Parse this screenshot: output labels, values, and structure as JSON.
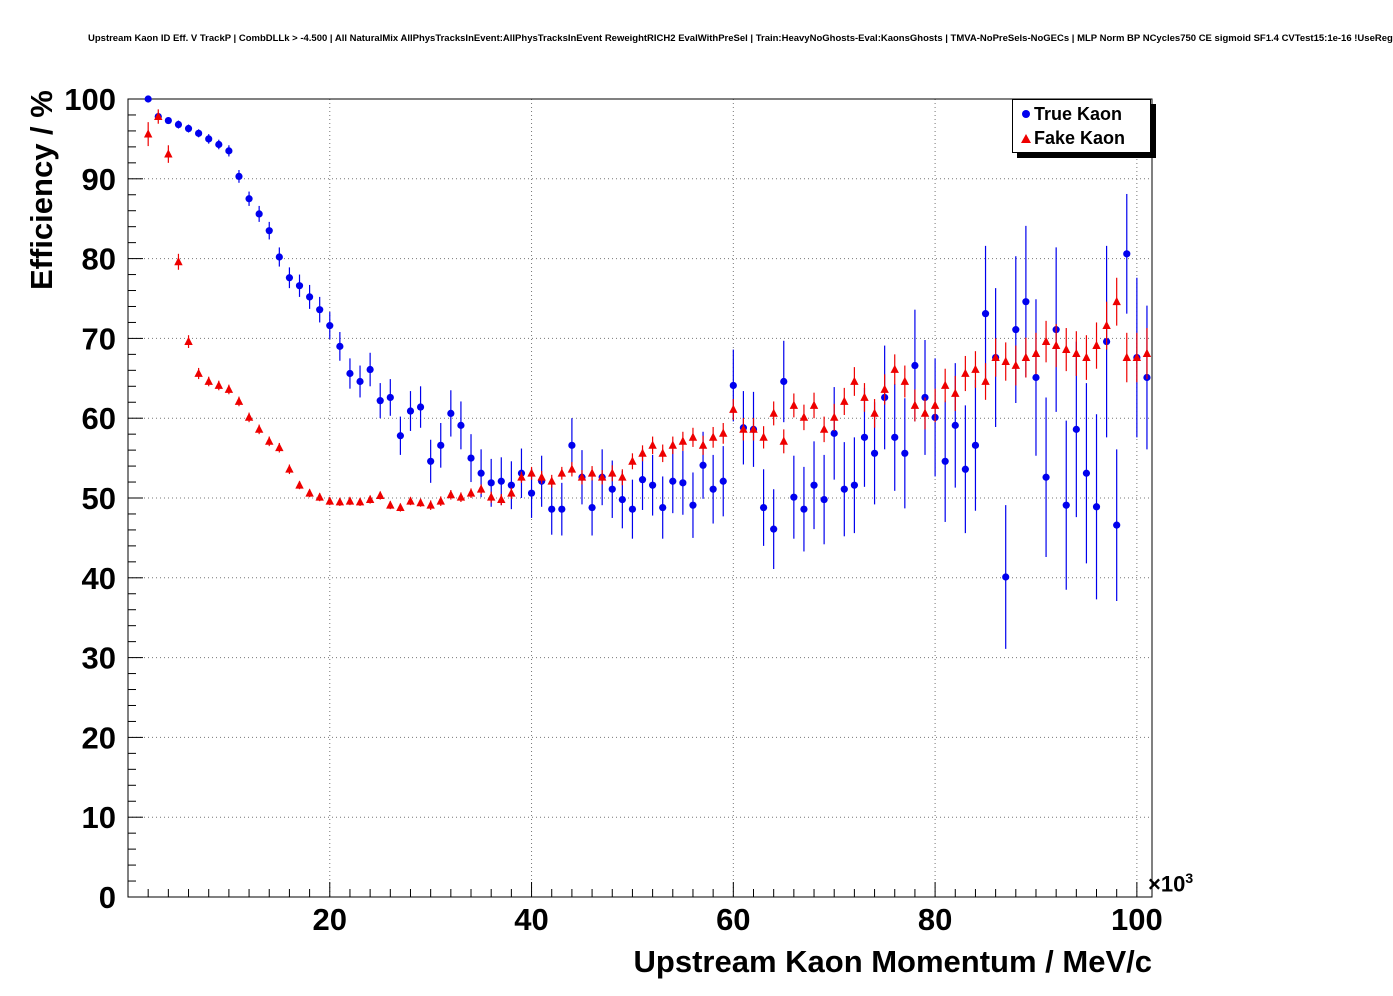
{
  "title_bar": "Upstream Kaon ID Eff. V TrackP | CombDLLk > -4.500 | All NaturalMix AllPhysTracksInEvent:AllPhysTracksInEvent ReweightRICH2 EvalWithPreSel | Train:HeavyNoGhosts-Eval:KaonsGhosts | TMVA-NoPreSels-NoGECs | MLP Norm BP NCycles750 CE sigmoid SF1.4 CVTest15:1e-16 !UseReg",
  "chart_data": {
    "type": "scatter",
    "title": "Upstream Kaon ID Eff. V TrackP | CombDLLk > -4.500 | All NaturalMix AllPhysTracksInEvent:AllPhysTracksInEvent ReweightRICH2 EvalWithPreSel | Train:HeavyNoGhosts-Eval:KaonsGhosts | TMVA-NoPreSels-NoGECs | MLP Norm BP NCycles750 CE sigmoid SF1.4 CVTest15:1e-16 !UseReg",
    "xlabel": "Upstream Kaon Momentum / MeV/c",
    "ylabel": "Efficiency / %",
    "x_scale_prefix": "×10",
    "x_scale_exp": "3",
    "xlim": [
      0,
      101.5
    ],
    "ylim": [
      0,
      100
    ],
    "x_ticks": [
      20,
      40,
      60,
      80,
      100
    ],
    "y_ticks": [
      0,
      10,
      20,
      30,
      40,
      50,
      60,
      70,
      80,
      90,
      100
    ],
    "grid": true,
    "legend_position": "top-right",
    "x_units_exponent": "x values in units of 1000 MeV/c",
    "x": [
      2,
      3,
      4,
      5,
      6,
      7,
      8,
      9,
      10,
      11,
      12,
      13,
      14,
      15,
      16,
      17,
      18,
      19,
      20,
      21,
      22,
      23,
      24,
      25,
      26,
      27,
      28,
      29,
      30,
      31,
      32,
      33,
      34,
      35,
      36,
      37,
      38,
      39,
      40,
      41,
      42,
      43,
      44,
      45,
      46,
      47,
      48,
      49,
      50,
      51,
      52,
      53,
      54,
      55,
      56,
      57,
      58,
      59,
      60,
      61,
      62,
      63,
      64,
      65,
      66,
      67,
      68,
      69,
      70,
      71,
      72,
      73,
      74,
      75,
      76,
      77,
      78,
      79,
      80,
      81,
      82,
      83,
      84,
      85,
      86,
      87,
      88,
      89,
      90,
      91,
      92,
      93,
      94,
      95,
      96,
      97,
      98,
      99,
      100,
      101
    ],
    "series": [
      {
        "name": "True Kaon",
        "color": "#0000ee",
        "marker": "circle",
        "y": [
          100.0,
          97.8,
          97.3,
          96.8,
          96.3,
          95.7,
          95.0,
          94.3,
          93.5,
          90.3,
          87.5,
          85.6,
          83.5,
          80.2,
          77.6,
          76.6,
          75.2,
          73.6,
          71.6,
          69.0,
          65.6,
          64.6,
          66.1,
          62.2,
          62.6,
          57.8,
          60.9,
          61.4,
          54.6,
          56.6,
          60.6,
          59.1,
          55.0,
          53.1,
          51.9,
          52.1,
          51.6,
          53.1,
          50.6,
          52.1,
          48.6,
          48.6,
          56.6,
          52.6,
          48.8,
          52.6,
          51.1,
          49.8,
          48.6,
          52.3,
          51.6,
          48.8,
          52.1,
          51.9,
          49.1,
          54.1,
          51.1,
          52.1,
          64.1,
          58.8,
          58.6,
          48.8,
          46.1,
          64.6,
          50.1,
          48.6,
          51.6,
          49.8,
          58.1,
          51.1,
          51.6,
          57.6,
          55.6,
          62.6,
          57.6,
          55.6,
          66.6,
          62.6,
          60.1,
          54.6,
          59.1,
          53.6,
          56.6,
          73.1,
          67.6,
          40.1,
          71.1,
          74.6,
          65.1,
          52.6,
          71.1,
          49.1,
          58.6,
          53.1,
          48.9,
          69.6,
          46.6,
          80.6,
          67.6,
          65.1
        ],
        "yerr": [
          0.3,
          0.4,
          0.4,
          0.5,
          0.5,
          0.5,
          0.6,
          0.6,
          0.7,
          0.8,
          0.9,
          1.0,
          1.1,
          1.2,
          1.3,
          1.4,
          1.5,
          1.6,
          1.7,
          1.8,
          1.9,
          2.0,
          2.1,
          2.2,
          2.3,
          2.4,
          2.5,
          2.6,
          2.7,
          2.8,
          2.9,
          3.0,
          3.0,
          3.0,
          3.0,
          3.0,
          3.0,
          3.1,
          3.1,
          3.2,
          3.2,
          3.3,
          3.4,
          3.4,
          3.5,
          3.5,
          3.6,
          3.6,
          3.7,
          3.8,
          3.8,
          3.9,
          4.0,
          4.0,
          4.1,
          4.2,
          4.3,
          4.4,
          4.5,
          4.6,
          4.7,
          4.8,
          5.0,
          5.1,
          5.2,
          5.3,
          5.5,
          5.6,
          5.8,
          5.9,
          6.0,
          6.2,
          6.4,
          6.5,
          6.7,
          6.9,
          7.0,
          7.2,
          7.4,
          7.6,
          7.8,
          8.0,
          8.2,
          8.5,
          8.7,
          9.0,
          9.2,
          9.5,
          9.8,
          10.0,
          10.3,
          10.6,
          11.0,
          11.3,
          11.6,
          12.0,
          9.5,
          7.5,
          10.0,
          9.0
        ]
      },
      {
        "name": "Fake Kaon",
        "color": "#ee0000",
        "marker": "triangle",
        "y": [
          95.6,
          97.8,
          93.1,
          79.6,
          69.6,
          65.6,
          64.6,
          64.1,
          63.6,
          62.1,
          60.1,
          58.6,
          57.1,
          56.3,
          53.6,
          51.6,
          50.6,
          50.1,
          49.6,
          49.5,
          49.6,
          49.5,
          49.8,
          50.3,
          49.1,
          48.8,
          49.6,
          49.4,
          49.1,
          49.6,
          50.4,
          50.1,
          50.6,
          51.1,
          50.1,
          49.8,
          50.6,
          52.6,
          53.1,
          52.6,
          52.1,
          53.1,
          53.6,
          52.6,
          53.1,
          52.6,
          53.1,
          52.6,
          54.6,
          55.6,
          56.6,
          55.6,
          56.6,
          57.1,
          57.6,
          56.6,
          57.6,
          58.1,
          61.1,
          58.6,
          58.6,
          57.6,
          60.6,
          57.1,
          61.6,
          60.1,
          61.6,
          58.6,
          60.1,
          62.1,
          64.6,
          62.6,
          60.6,
          63.6,
          66.1,
          64.6,
          61.6,
          60.6,
          61.6,
          64.1,
          63.1,
          65.6,
          66.1,
          64.6,
          67.6,
          67.1,
          66.6,
          67.6,
          68.1,
          69.6,
          69.1,
          68.6,
          68.1,
          67.6,
          69.1,
          71.6,
          74.6,
          67.6,
          67.6,
          68.1
        ],
        "yerr": [
          1.5,
          0.9,
          1.1,
          1.0,
          0.8,
          0.7,
          0.6,
          0.6,
          0.6,
          0.6,
          0.6,
          0.6,
          0.6,
          0.6,
          0.6,
          0.5,
          0.5,
          0.5,
          0.5,
          0.5,
          0.5,
          0.5,
          0.5,
          0.5,
          0.5,
          0.5,
          0.5,
          0.5,
          0.6,
          0.6,
          0.6,
          0.6,
          0.6,
          0.6,
          0.7,
          0.7,
          0.7,
          0.7,
          0.8,
          0.8,
          0.8,
          0.8,
          0.9,
          0.9,
          0.9,
          0.9,
          1.0,
          1.0,
          1.0,
          1.0,
          1.1,
          1.1,
          1.1,
          1.2,
          1.2,
          1.2,
          1.3,
          1.3,
          1.3,
          1.4,
          1.4,
          1.4,
          1.5,
          1.5,
          1.5,
          1.6,
          1.6,
          1.6,
          1.7,
          1.7,
          1.8,
          1.8,
          1.8,
          1.9,
          1.9,
          2.0,
          2.0,
          2.0,
          2.1,
          2.1,
          2.2,
          2.2,
          2.3,
          2.3,
          2.4,
          2.4,
          2.5,
          2.5,
          2.6,
          2.6,
          2.7,
          2.7,
          2.8,
          2.8,
          2.9,
          3.0,
          3.0,
          3.1,
          3.1,
          3.2
        ]
      }
    ]
  }
}
